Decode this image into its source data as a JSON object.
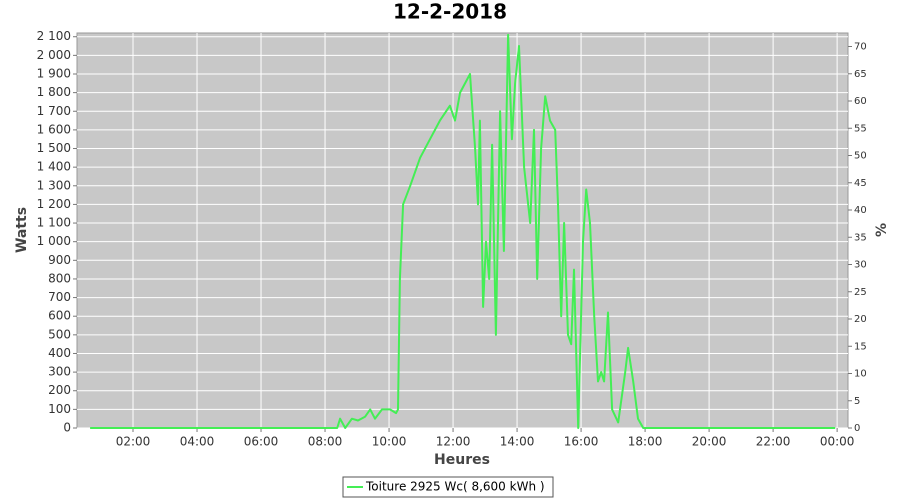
{
  "chart_data": {
    "type": "line",
    "title": "12-2-2018",
    "y_label": "Watts",
    "y2_label": "%",
    "x_label": "Heures",
    "xlim": [
      0.25,
      24.34
    ],
    "xticks": [
      {
        "value": 2,
        "label": "02:00"
      },
      {
        "value": 4,
        "label": "04:00"
      },
      {
        "value": 6,
        "label": "06:00"
      },
      {
        "value": 8,
        "label": "08:00"
      },
      {
        "value": 10,
        "label": "10:00"
      },
      {
        "value": 12,
        "label": "12:00"
      },
      {
        "value": 14,
        "label": "14:00"
      },
      {
        "value": 16,
        "label": "16:00"
      },
      {
        "value": 18,
        "label": "18:00"
      },
      {
        "value": 20,
        "label": "20:00"
      },
      {
        "value": 22,
        "label": "22:00"
      },
      {
        "value": 24,
        "label": "00:00"
      }
    ],
    "ylim": [
      0,
      2120
    ],
    "yticks": [
      0,
      100,
      200,
      300,
      400,
      500,
      600,
      700,
      800,
      900,
      {
        "value": 1000,
        "label": "1 000"
      },
      {
        "value": 1100,
        "label": "1 100"
      },
      {
        "value": 1200,
        "label": "1 200"
      },
      {
        "value": 1300,
        "label": "1 300"
      },
      {
        "value": 1400,
        "label": "1 400"
      },
      {
        "value": 1500,
        "label": "1 500"
      },
      {
        "value": 1600,
        "label": "1 600"
      },
      {
        "value": 1700,
        "label": "1 700"
      },
      {
        "value": 1800,
        "label": "1 800"
      },
      {
        "value": 1900,
        "label": "1 900"
      },
      {
        "value": 2000,
        "label": "2 000"
      },
      {
        "value": 2100,
        "label": "2 100"
      }
    ],
    "y2lim": [
      0,
      72.48
    ],
    "y2ticks": [
      0,
      5,
      10,
      15,
      20,
      25,
      30,
      35,
      40,
      45,
      50,
      55,
      60,
      65,
      70
    ],
    "grid": true,
    "legend": "bottom",
    "series": [
      {
        "name": "Toiture 2925 Wc( 8,600 kWh )",
        "color": "#44ee55",
        "x": [
          0.66,
          8.38,
          8.47,
          8.63,
          8.84,
          9.03,
          9.25,
          9.41,
          9.56,
          9.78,
          10.03,
          10.22,
          10.28,
          10.34,
          10.44,
          10.66,
          10.97,
          11.28,
          11.59,
          11.9,
          12.06,
          12.22,
          12.53,
          12.69,
          12.78,
          12.84,
          12.94,
          13.03,
          13.13,
          13.22,
          13.34,
          13.47,
          13.59,
          13.72,
          13.84,
          13.94,
          14.06,
          14.22,
          14.41,
          14.53,
          14.63,
          14.75,
          14.88,
          15.03,
          15.19,
          15.28,
          15.38,
          15.47,
          15.59,
          15.69,
          15.78,
          15.91,
          16.06,
          16.16,
          16.28,
          16.41,
          16.53,
          16.63,
          16.72,
          16.84,
          16.97,
          17.16,
          17.38,
          17.47,
          17.63,
          17.78,
          17.94,
          23.94
        ],
        "values": [
          0,
          0,
          50,
          0,
          50,
          40,
          60,
          100,
          50,
          100,
          100,
          80,
          100,
          800,
          1200,
          1300,
          1450,
          1550,
          1650,
          1730,
          1650,
          1800,
          1900,
          1500,
          1200,
          1650,
          650,
          1000,
          800,
          1520,
          500,
          1700,
          950,
          2110,
          1550,
          1850,
          2050,
          1400,
          1100,
          1600,
          800,
          1500,
          1780,
          1650,
          1600,
          1200,
          600,
          1100,
          500,
          450,
          850,
          0,
          1000,
          1280,
          1100,
          600,
          250,
          300,
          250,
          620,
          100,
          30,
          300,
          430,
          250,
          50,
          0,
          0
        ]
      }
    ]
  }
}
